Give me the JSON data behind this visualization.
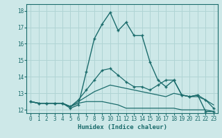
{
  "title": "",
  "xlabel": "Humidex (Indice chaleur)",
  "ylabel": "",
  "bg_color": "#cde8e8",
  "line_color": "#1a6b6b",
  "grid_color": "#b0d4d4",
  "xlim": [
    -0.5,
    23.5
  ],
  "ylim": [
    11.8,
    18.4
  ],
  "yticks": [
    12,
    13,
    14,
    15,
    16,
    17,
    18
  ],
  "xticks": [
    0,
    1,
    2,
    3,
    4,
    5,
    6,
    7,
    8,
    9,
    10,
    11,
    12,
    13,
    14,
    15,
    16,
    17,
    18,
    19,
    20,
    21,
    22,
    23
  ],
  "series": [
    {
      "x": [
        0,
        1,
        2,
        3,
        4,
        5,
        6,
        7,
        8,
        9,
        10,
        11,
        12,
        13,
        14,
        15,
        16,
        17,
        18,
        19,
        20,
        21,
        22,
        23
      ],
      "y": [
        12.5,
        12.4,
        12.4,
        12.4,
        12.4,
        12.1,
        12.3,
        14.3,
        16.3,
        17.2,
        17.9,
        16.8,
        17.3,
        16.5,
        16.5,
        14.9,
        13.8,
        13.4,
        13.8,
        12.9,
        12.8,
        12.9,
        11.9,
        11.9
      ],
      "marker": "+",
      "linestyle": "-",
      "linewidth": 1.0,
      "markersize": 3.5
    },
    {
      "x": [
        0,
        1,
        2,
        3,
        4,
        5,
        6,
        7,
        8,
        9,
        10,
        11,
        12,
        13,
        14,
        15,
        16,
        17,
        18,
        19,
        20,
        21,
        22,
        23
      ],
      "y": [
        12.5,
        12.4,
        12.4,
        12.4,
        12.4,
        12.2,
        12.4,
        12.5,
        12.5,
        12.5,
        12.4,
        12.3,
        12.1,
        12.1,
        12.1,
        12.1,
        12.1,
        12.1,
        12.1,
        12.0,
        12.0,
        12.0,
        12.0,
        11.9
      ],
      "marker": null,
      "linestyle": "-",
      "linewidth": 0.9,
      "markersize": 0
    },
    {
      "x": [
        0,
        1,
        2,
        3,
        4,
        5,
        6,
        7,
        8,
        9,
        10,
        11,
        12,
        13,
        14,
        15,
        16,
        17,
        18,
        19,
        20,
        21,
        22,
        23
      ],
      "y": [
        12.5,
        12.4,
        12.4,
        12.4,
        12.4,
        12.2,
        12.5,
        12.8,
        13.1,
        13.3,
        13.5,
        13.4,
        13.3,
        13.2,
        13.1,
        13.0,
        12.9,
        12.8,
        13.0,
        12.9,
        12.8,
        12.8,
        12.6,
        12.3
      ],
      "marker": null,
      "linestyle": "-",
      "linewidth": 0.9,
      "markersize": 0
    },
    {
      "x": [
        0,
        1,
        2,
        3,
        4,
        5,
        6,
        7,
        8,
        9,
        10,
        11,
        12,
        13,
        14,
        15,
        16,
        17,
        18,
        19,
        20,
        21,
        22,
        23
      ],
      "y": [
        12.5,
        12.4,
        12.4,
        12.4,
        12.4,
        12.2,
        12.6,
        13.2,
        13.8,
        14.4,
        14.5,
        14.1,
        13.7,
        13.4,
        13.4,
        13.2,
        13.5,
        13.8,
        13.8,
        12.9,
        12.8,
        12.9,
        12.6,
        12.1
      ],
      "marker": "+",
      "linestyle": "-",
      "linewidth": 0.9,
      "markersize": 3.5
    }
  ]
}
